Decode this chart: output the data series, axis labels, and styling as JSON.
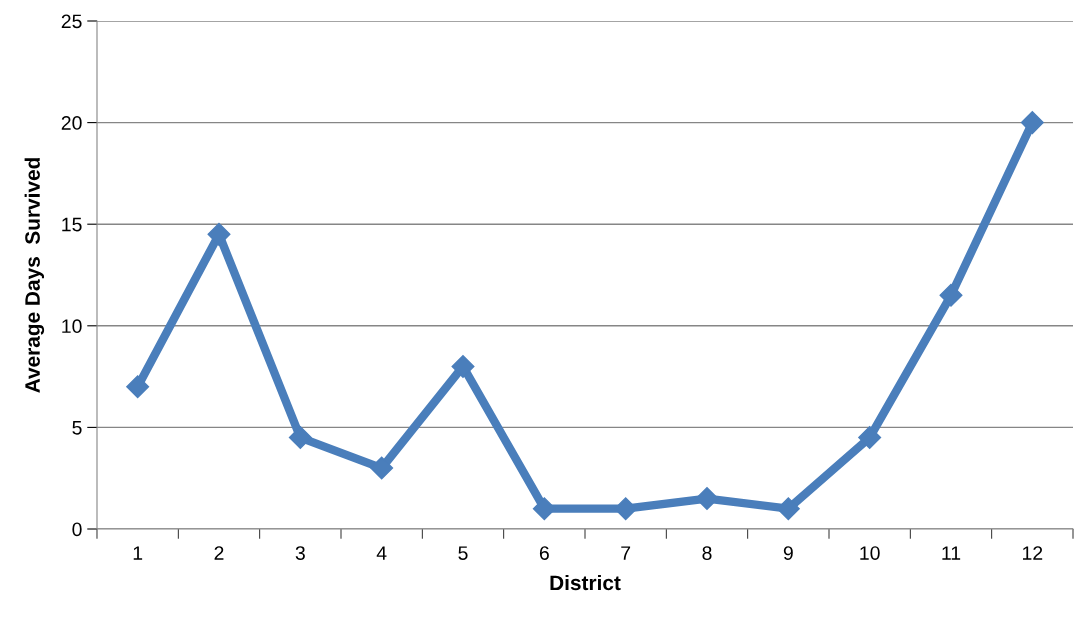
{
  "chart_data": {
    "type": "line",
    "xlabel": "District",
    "ylabel": "Average Days  Survived",
    "categories": [
      "1",
      "2",
      "3",
      "4",
      "5",
      "6",
      "7",
      "8",
      "9",
      "10",
      "11",
      "12"
    ],
    "series": [
      {
        "color": "#4a7ebb",
        "values": [
          7,
          14.5,
          4.5,
          3,
          8,
          1,
          1,
          1.5,
          1,
          4.5,
          11.5,
          20
        ]
      }
    ],
    "ylim": [
      0,
      25
    ],
    "yticks": [
      0,
      5,
      10,
      15,
      20,
      25
    ],
    "grid": "y",
    "marker": "diamond",
    "line_style": "solid"
  }
}
